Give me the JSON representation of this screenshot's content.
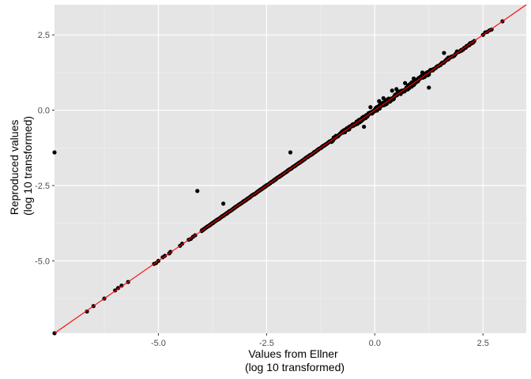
{
  "chart_data": {
    "type": "scatter",
    "title": "",
    "xlabel": [
      "Values from Ellner",
      "(log 10 transformed)"
    ],
    "ylabel": [
      "Reproduced values",
      "(log 10 transformed)"
    ],
    "xlim": [
      -7.4,
      3.5
    ],
    "ylim": [
      -7.4,
      3.5
    ],
    "x_ticks": [
      -5.0,
      -2.5,
      0.0,
      2.5
    ],
    "x_tick_labels": [
      "-5.0",
      "-2.5",
      "0.0",
      "2.5"
    ],
    "y_ticks": [
      -5.0,
      -2.5,
      0.0,
      2.5
    ],
    "y_tick_labels": [
      "-5.0",
      "-2.5",
      "0.0",
      "2.5"
    ],
    "grid": true,
    "panel_background": "#e5e5e5",
    "point_color": "#000000",
    "reference_line": {
      "slope": 1,
      "intercept": 0,
      "color": "#ff0000"
    },
    "series": [
      {
        "dense_segments": [
          {
            "from": -4.0,
            "to": -1.0,
            "step": 0.012,
            "jitter": 0.01
          },
          {
            "from": -1.0,
            "to": 0.0,
            "step": 0.01,
            "jitter": 0.05
          },
          {
            "from": 0.0,
            "to": 1.3,
            "step": 0.01,
            "jitter": 0.07
          },
          {
            "from": 1.3,
            "to": 2.3,
            "step": 0.02,
            "jitter": 0.035
          }
        ],
        "points": [
          [
            -7.4,
            -1.4
          ],
          [
            -7.4,
            -7.4
          ],
          [
            -6.5,
            -6.5
          ],
          [
            -6.65,
            -6.68
          ],
          [
            -6.25,
            -6.25
          ],
          [
            -6.0,
            -5.98
          ],
          [
            -5.93,
            -5.9
          ],
          [
            -5.85,
            -5.82
          ],
          [
            -5.7,
            -5.7
          ],
          [
            -5.1,
            -5.1
          ],
          [
            -5.05,
            -5.07
          ],
          [
            -5.0,
            -5.0
          ],
          [
            -4.9,
            -4.88
          ],
          [
            -4.85,
            -4.83
          ],
          [
            -4.75,
            -4.75
          ],
          [
            -4.72,
            -4.7
          ],
          [
            -4.5,
            -4.5
          ],
          [
            -4.45,
            -4.43
          ],
          [
            -4.3,
            -4.3
          ],
          [
            -4.25,
            -4.27
          ],
          [
            -4.2,
            -4.2
          ],
          [
            -4.15,
            -4.15
          ],
          [
            -4.1,
            -2.68
          ],
          [
            -3.5,
            -3.1
          ],
          [
            -1.95,
            -1.4
          ],
          [
            -0.6,
            -0.6
          ],
          [
            -0.5,
            -0.5
          ],
          [
            -0.4,
            -0.45
          ],
          [
            -0.35,
            -0.4
          ],
          [
            -0.25,
            -0.55
          ],
          [
            -0.1,
            0.1
          ],
          [
            0.1,
            0.3
          ],
          [
            0.2,
            0.4
          ],
          [
            0.4,
            0.65
          ],
          [
            0.5,
            0.7
          ],
          [
            0.7,
            0.9
          ],
          [
            0.9,
            1.05
          ],
          [
            1.1,
            1.25
          ],
          [
            1.25,
            0.75
          ],
          [
            1.6,
            1.9
          ],
          [
            1.7,
            1.75
          ],
          [
            1.9,
            1.95
          ],
          [
            2.0,
            2.0
          ],
          [
            2.2,
            2.2
          ],
          [
            2.25,
            2.25
          ],
          [
            2.3,
            2.3
          ],
          [
            2.5,
            2.5
          ],
          [
            2.55,
            2.58
          ],
          [
            2.6,
            2.6
          ],
          [
            2.65,
            2.65
          ],
          [
            2.7,
            2.68
          ],
          [
            2.95,
            2.95
          ]
        ]
      }
    ]
  }
}
